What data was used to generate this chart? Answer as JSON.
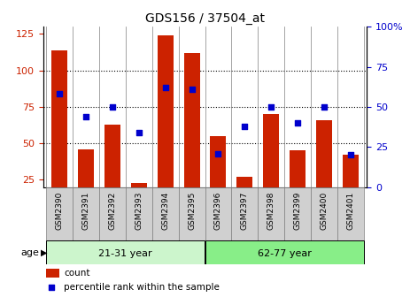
{
  "title": "GDS156 / 37504_at",
  "samples": [
    "GSM2390",
    "GSM2391",
    "GSM2392",
    "GSM2393",
    "GSM2394",
    "GSM2395",
    "GSM2396",
    "GSM2397",
    "GSM2398",
    "GSM2399",
    "GSM2400",
    "GSM2401"
  ],
  "counts": [
    114,
    46,
    63,
    23,
    124,
    112,
    55,
    27,
    70,
    45,
    66,
    42
  ],
  "percentiles": [
    58,
    44,
    50,
    34,
    62,
    61,
    21,
    38,
    50,
    40,
    50,
    20
  ],
  "groups": [
    {
      "label": "21-31 year",
      "start": 0,
      "end": 6
    },
    {
      "label": "62-77 year",
      "start": 6,
      "end": 12
    }
  ],
  "group_colors": [
    "#ccf5cc",
    "#88ee88"
  ],
  "bar_color": "#cc2200",
  "dot_color": "#0000cc",
  "ylim_left": [
    20,
    130
  ],
  "ylim_right": [
    0,
    100
  ],
  "yticks_left": [
    25,
    50,
    75,
    100,
    125
  ],
  "yticks_right": [
    0,
    25,
    50,
    75,
    100
  ],
  "ylabel_left_color": "#cc2200",
  "ylabel_right_color": "#0000cc",
  "background_color": "#ffffff",
  "bar_width": 0.6,
  "age_label": "age",
  "legend_count": "count",
  "legend_percentile": "percentile rank within the sample",
  "xtick_bg": "#d0d0d0"
}
